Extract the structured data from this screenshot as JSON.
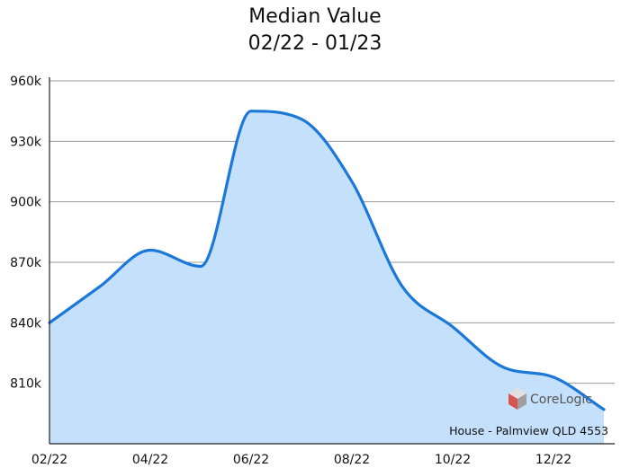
{
  "chart_data": {
    "type": "area",
    "title": "Median Value",
    "subtitle": "02/22 - 01/23",
    "xlabel": "",
    "ylabel": "",
    "ylim": [
      780000,
      960000
    ],
    "yticks": [
      810000,
      840000,
      870000,
      900000,
      930000,
      960000
    ],
    "ytick_labels": [
      "810k",
      "840k",
      "870k",
      "900k",
      "930k",
      "960k"
    ],
    "xticks": [
      "02/22",
      "04/22",
      "06/22",
      "08/22",
      "10/22",
      "12/22"
    ],
    "grid": true,
    "colors": {
      "line": "#1b78d8",
      "fill": "#c5e0fb",
      "grid": "#999999",
      "axis": "#222222"
    },
    "series": [
      {
        "x": [
          "02/22",
          "03/22",
          "04/22",
          "05/22",
          "06/22",
          "07/22",
          "08/22",
          "09/22",
          "10/22",
          "11/22",
          "12/22",
          "01/23"
        ],
        "values": [
          840000,
          858000,
          876000,
          868000,
          945000,
          941000,
          910000,
          858000,
          838000,
          818000,
          813000,
          797000
        ]
      }
    ],
    "brand": "CoreLogic",
    "annotation": "House - Palmview QLD 4553"
  }
}
